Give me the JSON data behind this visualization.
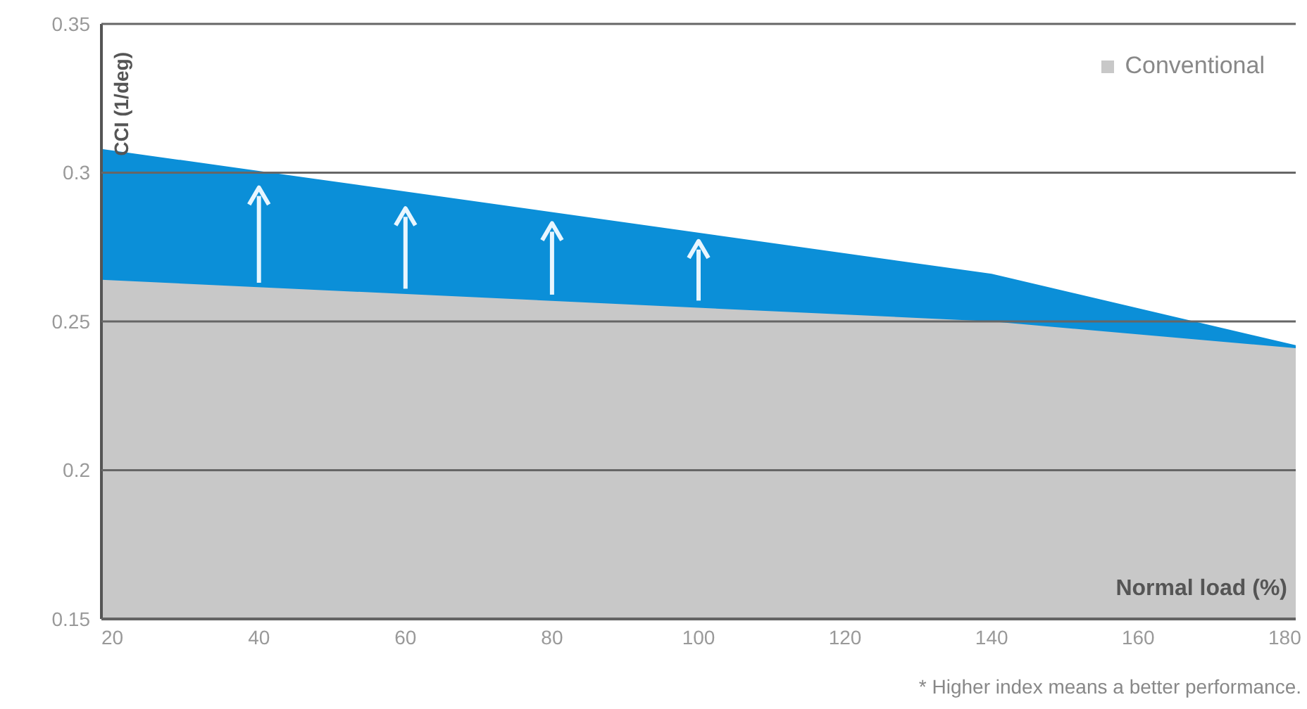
{
  "chart_data": {
    "type": "area",
    "xlabel": "Normal load (%)",
    "ylabel": "CCI (1/deg)",
    "x": [
      18.5,
      140,
      181.5
    ],
    "series": [
      {
        "color": "#0b8fd8",
        "values": [
          0.308,
          0.266,
          0.242
        ]
      },
      {
        "name": "Conventional",
        "color": "#c8c8c8",
        "values": [
          0.264,
          0.25,
          0.241
        ]
      }
    ],
    "xlim": [
      18.5,
      181.5
    ],
    "xticks": [
      20,
      40,
      60,
      80,
      100,
      120,
      140,
      160,
      180
    ],
    "ylim": [
      0.15,
      0.35
    ],
    "yticks": [
      0.15,
      0.2,
      0.25,
      0.3,
      0.35
    ],
    "grid": "y",
    "legend": "top right",
    "annotations": [
      "* Higher index means a better performance."
    ]
  }
}
